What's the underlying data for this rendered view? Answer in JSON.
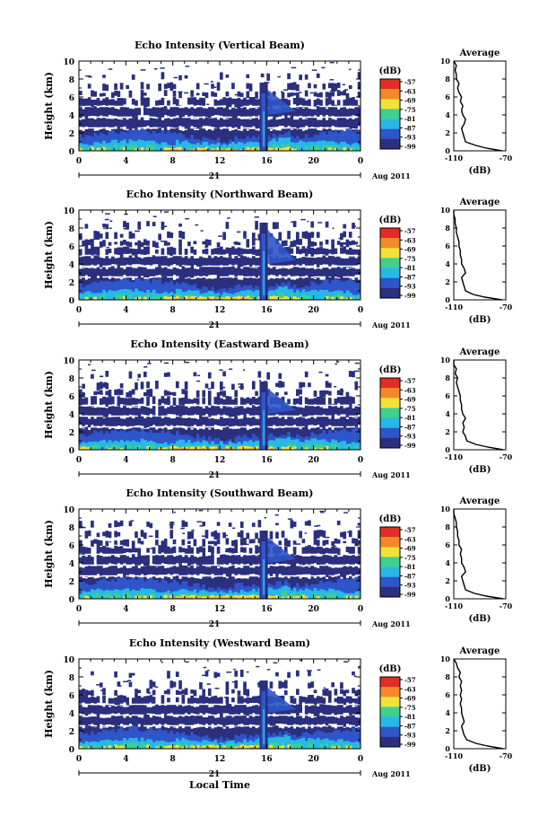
{
  "chart_data": {
    "type": "heatmap",
    "date_label": "Aug 2011",
    "day_label": "21",
    "xlabel": "Local Time",
    "ylabel": "Height (km)",
    "x_ticks": [
      "0",
      "4",
      "8",
      "12",
      "16",
      "20",
      "0"
    ],
    "y_ticks": [
      "0",
      "2",
      "4",
      "6",
      "8",
      "10"
    ],
    "xlim": [
      0,
      24
    ],
    "ylim": [
      0,
      10
    ],
    "colorbar_label": "(dB)",
    "colorbar_ticks": [
      "-57",
      "-63",
      "-69",
      "-75",
      "-81",
      "-87",
      "-93",
      "-99"
    ],
    "colorbar_range": [
      -99,
      -57
    ],
    "profile_title": "Average",
    "profile_xlabel": "(dB)",
    "profile_x_ticks": [
      "-110",
      "-70"
    ],
    "profile_xlim": [
      -110,
      -70
    ],
    "colors": {
      "deep": "#2a2f7e",
      "blue": "#2e55c9",
      "cyan": "#27b8e6",
      "green": "#3fcf8e",
      "yellow": "#f1e23a",
      "orange": "#f38a2a",
      "red": "#e02d26"
    },
    "panels": [
      {
        "title": "Echo Intensity (Vertical Beam)",
        "profile": [
          [
            0,
            -73
          ],
          [
            0.3,
            -85
          ],
          [
            0.6,
            -93
          ],
          [
            1.0,
            -101
          ],
          [
            1.5,
            -102
          ],
          [
            2.0,
            -103
          ],
          [
            2.5,
            -104
          ],
          [
            3.0,
            -102
          ],
          [
            3.5,
            -101
          ],
          [
            4.0,
            -103
          ],
          [
            4.5,
            -104
          ],
          [
            5.0,
            -103
          ],
          [
            5.5,
            -105
          ],
          [
            6.0,
            -104
          ],
          [
            6.5,
            -106
          ],
          [
            7.0,
            -107
          ],
          [
            7.5,
            -106
          ],
          [
            8.0,
            -108
          ],
          [
            8.5,
            -108
          ],
          [
            9.0,
            -109
          ],
          [
            9.5,
            -108
          ],
          [
            10,
            -110
          ]
        ]
      },
      {
        "title": "Echo Intensity (Northward Beam)",
        "profile": [
          [
            0,
            -73
          ],
          [
            0.3,
            -86
          ],
          [
            0.6,
            -95
          ],
          [
            1.0,
            -101
          ],
          [
            1.5,
            -102
          ],
          [
            2.0,
            -103
          ],
          [
            2.5,
            -104
          ],
          [
            3.0,
            -101
          ],
          [
            3.5,
            -102
          ],
          [
            4.0,
            -104
          ],
          [
            4.5,
            -104
          ],
          [
            5.0,
            -105
          ],
          [
            5.5,
            -105
          ],
          [
            6.0,
            -106
          ],
          [
            6.5,
            -106
          ],
          [
            7.0,
            -107
          ],
          [
            7.5,
            -108
          ],
          [
            8.0,
            -108
          ],
          [
            8.5,
            -109
          ],
          [
            9.0,
            -109
          ],
          [
            9.5,
            -110
          ],
          [
            10,
            -110
          ]
        ]
      },
      {
        "title": "Echo Intensity (Eastward Beam)",
        "profile": [
          [
            0,
            -72
          ],
          [
            0.3,
            -84
          ],
          [
            0.6,
            -93
          ],
          [
            1.0,
            -100
          ],
          [
            1.5,
            -101
          ],
          [
            2.0,
            -103
          ],
          [
            2.5,
            -102
          ],
          [
            3.0,
            -103
          ],
          [
            3.5,
            -101
          ],
          [
            4.0,
            -103
          ],
          [
            4.5,
            -104
          ],
          [
            5.0,
            -104
          ],
          [
            5.5,
            -105
          ],
          [
            6.0,
            -105
          ],
          [
            6.5,
            -106
          ],
          [
            7.0,
            -107
          ],
          [
            7.5,
            -108
          ],
          [
            8.0,
            -107
          ],
          [
            8.5,
            -109
          ],
          [
            9.0,
            -108
          ],
          [
            9.5,
            -110
          ],
          [
            10,
            -110
          ]
        ]
      },
      {
        "title": "Echo Intensity (Southward Beam)",
        "profile": [
          [
            0,
            -72
          ],
          [
            0.3,
            -85
          ],
          [
            0.6,
            -94
          ],
          [
            1.0,
            -101
          ],
          [
            1.5,
            -102
          ],
          [
            2.0,
            -103
          ],
          [
            2.5,
            -104
          ],
          [
            3.0,
            -101
          ],
          [
            3.5,
            -102
          ],
          [
            4.0,
            -104
          ],
          [
            4.5,
            -104
          ],
          [
            5.0,
            -105
          ],
          [
            5.5,
            -104
          ],
          [
            6.0,
            -106
          ],
          [
            6.5,
            -106
          ],
          [
            7.0,
            -107
          ],
          [
            7.5,
            -107
          ],
          [
            8.0,
            -108
          ],
          [
            8.5,
            -108
          ],
          [
            9.0,
            -109
          ],
          [
            9.5,
            -110
          ],
          [
            10,
            -110
          ]
        ]
      },
      {
        "title": "Echo Intensity (Westward Beam)",
        "profile": [
          [
            0,
            -72
          ],
          [
            0.3,
            -84
          ],
          [
            0.6,
            -93
          ],
          [
            1.0,
            -100
          ],
          [
            1.5,
            -102
          ],
          [
            2.0,
            -103
          ],
          [
            2.5,
            -104
          ],
          [
            3.0,
            -102
          ],
          [
            3.5,
            -103
          ],
          [
            4.0,
            -104
          ],
          [
            4.5,
            -104
          ],
          [
            5.0,
            -105
          ],
          [
            5.5,
            -104
          ],
          [
            6.0,
            -105
          ],
          [
            6.5,
            -104
          ],
          [
            7.0,
            -105
          ],
          [
            7.5,
            -104
          ],
          [
            8.0,
            -106
          ],
          [
            8.5,
            -105
          ],
          [
            9.0,
            -107
          ],
          [
            9.5,
            -108
          ],
          [
            10,
            -110
          ]
        ]
      }
    ]
  }
}
